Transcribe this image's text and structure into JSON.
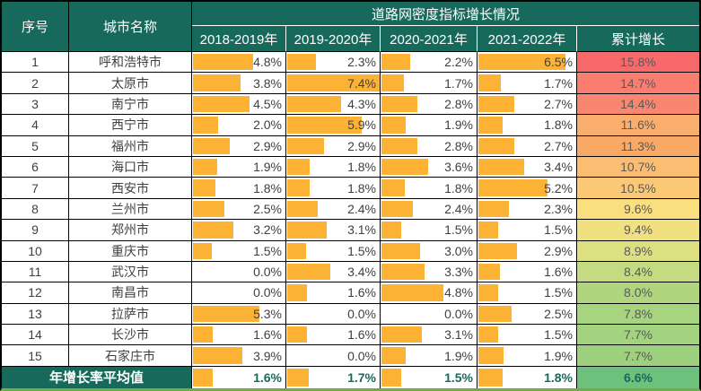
{
  "chart_data": {
    "type": "table",
    "title": "道路网密度指标增长情况",
    "col_headers": {
      "index": "序号",
      "city": "城市名称",
      "years": [
        "2018-2019年",
        "2019-2020年",
        "2020-2021年",
        "2021-2022年"
      ],
      "cumulative": "累计增长"
    },
    "unit": "%",
    "bar_scale_max": 7.4,
    "rows": [
      {
        "index": "1",
        "city": "呼和浩特市",
        "values": [
          4.8,
          2.3,
          2.2,
          6.5
        ],
        "cumulative": 15.8,
        "cum_bg": "#F8696B"
      },
      {
        "index": "2",
        "city": "太原市",
        "values": [
          3.8,
          7.4,
          1.7,
          1.7
        ],
        "cumulative": 14.7,
        "cum_bg": "#F97E70"
      },
      {
        "index": "3",
        "city": "南宁市",
        "values": [
          4.5,
          4.3,
          2.8,
          2.7
        ],
        "cumulative": 14.4,
        "cum_bg": "#F98670"
      },
      {
        "index": "4",
        "city": "西宁市",
        "values": [
          2.0,
          5.9,
          1.9,
          1.8
        ],
        "cumulative": 11.6,
        "cum_bg": "#FAAE6D"
      },
      {
        "index": "5",
        "city": "福州市",
        "values": [
          2.9,
          2.9,
          2.8,
          2.7
        ],
        "cumulative": 11.3,
        "cum_bg": "#F9A965"
      },
      {
        "index": "6",
        "city": "海口市",
        "values": [
          1.9,
          1.8,
          3.6,
          3.4
        ],
        "cumulative": 10.7,
        "cum_bg": "#FBBD72"
      },
      {
        "index": "7",
        "city": "西安市",
        "values": [
          1.8,
          1.8,
          1.8,
          5.2
        ],
        "cumulative": 10.5,
        "cum_bg": "#FBC876"
      },
      {
        "index": "8",
        "city": "兰州市",
        "values": [
          2.5,
          2.4,
          2.4,
          2.3
        ],
        "cumulative": 9.6,
        "cum_bg": "#FADF7E"
      },
      {
        "index": "9",
        "city": "郑州市",
        "values": [
          3.2,
          3.1,
          1.5,
          1.5
        ],
        "cumulative": 9.4,
        "cum_bg": "#F1E07F"
      },
      {
        "index": "10",
        "city": "重庆市",
        "values": [
          1.5,
          1.5,
          3.0,
          2.9
        ],
        "cumulative": 8.9,
        "cum_bg": "#DCE081"
      },
      {
        "index": "11",
        "city": "武汉市",
        "values": [
          0.0,
          3.4,
          3.3,
          1.6
        ],
        "cumulative": 8.4,
        "cum_bg": "#C4DB81"
      },
      {
        "index": "12",
        "city": "南昌市",
        "values": [
          0.0,
          1.6,
          4.8,
          1.5
        ],
        "cumulative": 8.0,
        "cum_bg": "#AFD67F"
      },
      {
        "index": "13",
        "city": "拉萨市",
        "values": [
          5.3,
          0.0,
          0.0,
          2.5
        ],
        "cumulative": 7.8,
        "cum_bg": "#A7D47E"
      },
      {
        "index": "14",
        "city": "长沙市",
        "values": [
          1.6,
          1.6,
          3.1,
          1.5
        ],
        "cumulative": 7.7,
        "cum_bg": "#A3D37E"
      },
      {
        "index": "15",
        "city": "石家庄市",
        "values": [
          3.9,
          0.0,
          1.9,
          1.9
        ],
        "cumulative": 7.7,
        "cum_bg": "#9ED17D"
      }
    ],
    "summary_row": {
      "label": "年增长率平均值",
      "values": [
        1.6,
        1.7,
        1.5,
        1.8
      ],
      "cumulative": 6.6,
      "cum_bg": "#6EC07D"
    }
  },
  "colors": {
    "header_bg": "#17695C",
    "header_text": "#FFFFFF",
    "bar": "#FCB234",
    "border": "#000000",
    "body_text": "#404040",
    "cumulative_text": "#595959",
    "summary_value_text": "#17695C",
    "bottom_border": "#70AD47"
  }
}
